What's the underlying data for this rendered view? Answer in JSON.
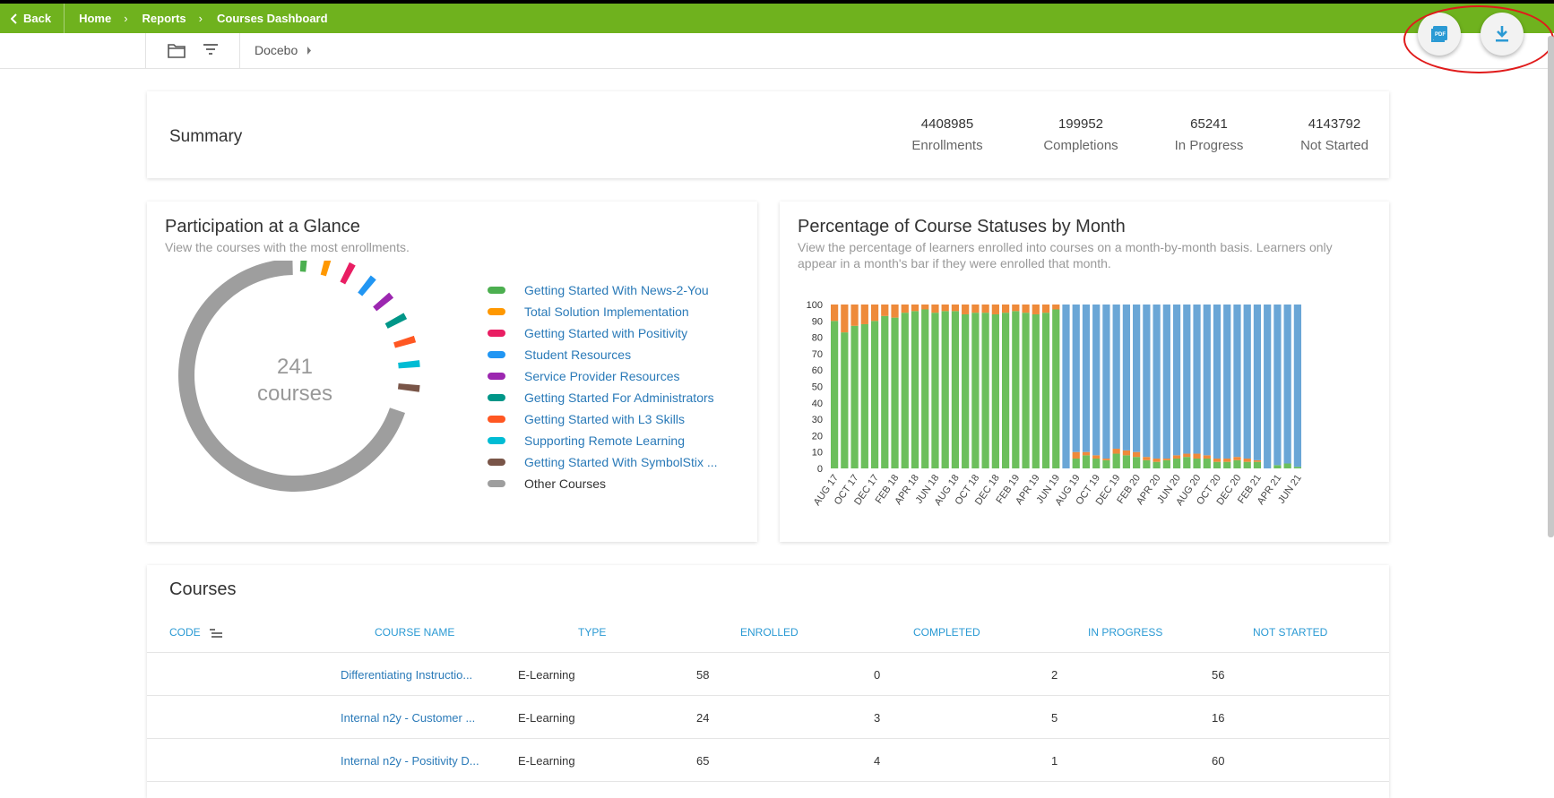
{
  "topbar": {
    "back_label": "Back",
    "breadcrumbs": [
      "Home",
      "Reports",
      "Courses Dashboard"
    ],
    "pdf_icon": "pdf-export-icon",
    "download_icon": "download-icon"
  },
  "subbar": {
    "folder_icon": "folder-icon",
    "filter_icon": "filter-icon",
    "branch": "Docebo"
  },
  "summary": {
    "title": "Summary",
    "stats": [
      {
        "value": "4408985",
        "label": "Enrollments"
      },
      {
        "value": "199952",
        "label": "Completions"
      },
      {
        "value": "65241",
        "label": "In Progress"
      },
      {
        "value": "4143792",
        "label": "Not Started"
      }
    ]
  },
  "participation": {
    "title": "Participation at a Glance",
    "subtitle": "View the courses with the most enrollments.",
    "center_value": "241",
    "center_label": "courses",
    "legend": [
      {
        "label": "Getting Started With News-2-You",
        "color": "#4caf50"
      },
      {
        "label": "Total Solution Implementation",
        "color": "#ff9800"
      },
      {
        "label": "Getting Started with Positivity",
        "color": "#e91e63"
      },
      {
        "label": "Student Resources",
        "color": "#2196f3"
      },
      {
        "label": "Service Provider Resources",
        "color": "#9c27b0"
      },
      {
        "label": "Getting Started For Administrators",
        "color": "#009688"
      },
      {
        "label": "Getting Started with L3 Skills",
        "color": "#ff5722"
      },
      {
        "label": "Supporting Remote Learning",
        "color": "#00bcd4"
      },
      {
        "label": "Getting Started With SymbolStix ...",
        "color": "#795548"
      },
      {
        "label": "Other Courses",
        "color": "#9e9e9e"
      }
    ]
  },
  "statuses": {
    "title": "Percentage of Course Statuses by Month",
    "subtitle_line1": "View the percentage of learners enrolled into courses on a month-by-month basis. Learners only",
    "subtitle_line2": "appear in a month's bar if they were enrolled that month."
  },
  "chart_data": {
    "type": "bar",
    "stacked": true,
    "ylim": [
      0,
      100
    ],
    "yticks": [
      "0",
      "10",
      "20",
      "30",
      "40",
      "50",
      "60",
      "70",
      "80",
      "90",
      "100"
    ],
    "categories": [
      "AUG 17",
      "SEP 17",
      "OCT 17",
      "NOV 17",
      "DEC 17",
      "JAN 18",
      "FEB 18",
      "MAR 18",
      "APR 18",
      "MAY 18",
      "JUN 18",
      "JUL 18",
      "AUG 18",
      "SEP 18",
      "OCT 18",
      "NOV 18",
      "DEC 18",
      "JAN 19",
      "FEB 19",
      "MAR 19",
      "APR 19",
      "MAY 19",
      "JUN 19",
      "JUL 19",
      "AUG 19",
      "SEP 19",
      "OCT 19",
      "NOV 19",
      "DEC 19",
      "JAN 20",
      "FEB 20",
      "MAR 20",
      "APR 20",
      "MAY 20",
      "JUN 20",
      "JUL 20",
      "AUG 20",
      "SEP 20",
      "OCT 20",
      "NOV 20",
      "DEC 20",
      "JAN 21",
      "FEB 21",
      "MAR 21",
      "APR 21",
      "MAY 21",
      "JUN 21"
    ],
    "tick_labels": [
      "AUG 17",
      "OCT 17",
      "DEC 17",
      "FEB 18",
      "APR 18",
      "JUN 18",
      "AUG 18",
      "OCT 18",
      "DEC 18",
      "FEB 19",
      "APR 19",
      "JUN 19",
      "AUG 19",
      "OCT 19",
      "DEC 19",
      "FEB 20",
      "APR 20",
      "JUN 20",
      "AUG 20",
      "OCT 20",
      "DEC 20",
      "FEB 21",
      "APR 21",
      "JUN 21"
    ],
    "series": [
      {
        "color": "#6cbf5c",
        "values": [
          90,
          83,
          87,
          88,
          90,
          93,
          92,
          95,
          96,
          97,
          95,
          96,
          96,
          94,
          95,
          95,
          94,
          95,
          96,
          95,
          94,
          95,
          97,
          0,
          6,
          8,
          6,
          5,
          9,
          8,
          7,
          5,
          4,
          5,
          6,
          7,
          6,
          6,
          4,
          4,
          5,
          4,
          4,
          0,
          2,
          3,
          1
        ]
      },
      {
        "color": "#ee8a3a",
        "values": [
          10,
          17,
          13,
          12,
          10,
          7,
          8,
          5,
          4,
          3,
          5,
          4,
          4,
          6,
          5,
          5,
          6,
          5,
          4,
          5,
          6,
          5,
          3,
          0,
          4,
          2,
          2,
          1,
          3,
          3,
          3,
          2,
          2,
          1,
          2,
          2,
          3,
          2,
          2,
          2,
          2,
          2,
          1,
          0,
          0,
          0,
          0
        ]
      },
      {
        "color": "#6aa6d6",
        "values": [
          0,
          0,
          0,
          0,
          0,
          0,
          0,
          0,
          0,
          0,
          0,
          0,
          0,
          0,
          0,
          0,
          0,
          0,
          0,
          0,
          0,
          0,
          0,
          100,
          90,
          90,
          92,
          94,
          88,
          89,
          90,
          93,
          94,
          94,
          92,
          91,
          91,
          92,
          94,
          94,
          93,
          94,
          95,
          100,
          98,
          97,
          99
        ]
      }
    ]
  },
  "courses": {
    "title": "Courses",
    "sort_icon": "sort-icon",
    "headers": [
      "CODE",
      "COURSE NAME",
      "TYPE",
      "ENROLLED",
      "COMPLETED",
      "IN PROGRESS",
      "NOT STARTED"
    ],
    "rows": [
      {
        "code": "",
        "name": "Differentiating Instructio...",
        "type": "E-Learning",
        "enrolled": "58",
        "completed": "0",
        "in_progress": "2",
        "not_started": "56"
      },
      {
        "code": "",
        "name": "Internal n2y - Customer ...",
        "type": "E-Learning",
        "enrolled": "24",
        "completed": "3",
        "in_progress": "5",
        "not_started": "16"
      },
      {
        "code": "",
        "name": "Internal n2y - Positivity D...",
        "type": "E-Learning",
        "enrolled": "65",
        "completed": "4",
        "in_progress": "1",
        "not_started": "60"
      }
    ]
  }
}
